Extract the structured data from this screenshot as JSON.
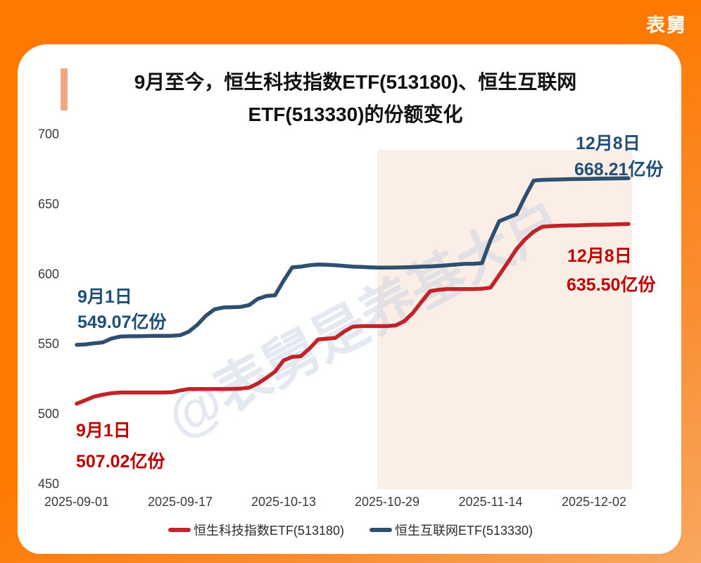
{
  "brand": {
    "logo_text": "表舅"
  },
  "title": {
    "line1": "9月至今，恒生科技指数ETF(513180)、恒生互联网",
    "line2": "ETF(513330)的份额变化"
  },
  "watermark": "@表舅是养基大户",
  "colors": {
    "background_orange": "#ff7900",
    "highlight_band": "#fbeee7",
    "red_series": "#c0242a",
    "blue_series": "#2e4f6e",
    "red_annotation": "#c00000",
    "blue_annotation": "#1f4e79",
    "accent_bar": "#f2a67f"
  },
  "annotations": {
    "blue_start": {
      "date": "9月1日",
      "value": "549.07亿份"
    },
    "red_start": {
      "date": "9月1日",
      "value": "507.02亿份"
    },
    "blue_end": {
      "date": "12月8日",
      "value": "668.21亿份"
    },
    "red_end": {
      "date": "12月8日",
      "value": "635.50亿份"
    }
  },
  "legend": [
    {
      "label": "恒生科技指数ETF(513180)",
      "color": "#c0242a"
    },
    {
      "label": "恒生互联网ETF(513330)",
      "color": "#2e4f6e"
    }
  ],
  "chart_data": {
    "type": "line",
    "title": "9月至今，恒生科技指数ETF(513180)、恒生互联网ETF(513330)的份额变化",
    "xlabel": "",
    "ylabel": "",
    "ylim": [
      450,
      700
    ],
    "y_ticks": [
      450,
      500,
      550,
      600,
      650,
      700
    ],
    "x_tick_labels": [
      "2025-09-01",
      "2025-09-17",
      "2025-10-13",
      "2025-10-29",
      "2025-11-14",
      "2025-12-02"
    ],
    "grid": false,
    "legend_position": "bottom",
    "highlight_band": {
      "from": "2025-10-28",
      "to": "2025-12-08",
      "color": "#fbeee7"
    },
    "dates": [
      "2025-09-01",
      "2025-09-02",
      "2025-09-03",
      "2025-09-04",
      "2025-09-05",
      "2025-09-08",
      "2025-09-09",
      "2025-09-10",
      "2025-09-11",
      "2025-09-12",
      "2025-09-15",
      "2025-09-16",
      "2025-09-17",
      "2025-09-18",
      "2025-09-19",
      "2025-09-22",
      "2025-09-23",
      "2025-09-24",
      "2025-09-25",
      "2025-09-26",
      "2025-09-29",
      "2025-09-30",
      "2025-10-09",
      "2025-10-10",
      "2025-10-13",
      "2025-10-14",
      "2025-10-15",
      "2025-10-16",
      "2025-10-17",
      "2025-10-20",
      "2025-10-21",
      "2025-10-22",
      "2025-10-23",
      "2025-10-24",
      "2025-10-27",
      "2025-10-28",
      "2025-10-29",
      "2025-10-30",
      "2025-10-31",
      "2025-11-03",
      "2025-11-04",
      "2025-11-05",
      "2025-11-06",
      "2025-11-07",
      "2025-11-10",
      "2025-11-11",
      "2025-11-12",
      "2025-11-13",
      "2025-11-14",
      "2025-11-17",
      "2025-11-18",
      "2025-11-19",
      "2025-11-20",
      "2025-11-21",
      "2025-11-24",
      "2025-11-25",
      "2025-11-26",
      "2025-11-27",
      "2025-11-28",
      "2025-12-01",
      "2025-12-02",
      "2025-12-03",
      "2025-12-04",
      "2025-12-05",
      "2025-12-08"
    ],
    "series": [
      {
        "name": "恒生科技指数ETF(513180)",
        "color": "#c0242a",
        "start_label": "9月1日 507.02亿份",
        "end_label": "12月8日 635.50亿份",
        "values": [
          507.02,
          509.5,
          512,
          513.5,
          514.5,
          515,
          515,
          515,
          515,
          515,
          515,
          515.2,
          516.5,
          517.5,
          517.5,
          517.5,
          517.5,
          517.5,
          517.6,
          517.8,
          518.5,
          521.5,
          525.5,
          530,
          538,
          540.5,
          541,
          546.5,
          553,
          553.5,
          554,
          558.5,
          562,
          562.5,
          562.5,
          562.5,
          562.5,
          563,
          566,
          572,
          580,
          587.5,
          588.5,
          589,
          589,
          589,
          589,
          589.2,
          590,
          599,
          608,
          617.5,
          624.5,
          630,
          633.5,
          634,
          634.2,
          634.4,
          634.5,
          634.7,
          634.9,
          635,
          635.1,
          635.3,
          635.5
        ]
      },
      {
        "name": "恒生互联网ETF(513330)",
        "color": "#2e4f6e",
        "start_label": "9月1日 549.07亿份",
        "end_label": "12月8日 668.21亿份",
        "values": [
          549.07,
          549.4,
          550.2,
          550.8,
          553.5,
          555,
          555.2,
          555.3,
          555.4,
          555.5,
          555.5,
          555.6,
          556,
          558.5,
          563.5,
          570,
          574.5,
          575.8,
          576,
          576.2,
          577.5,
          582,
          584,
          584.5,
          595,
          604.5,
          605,
          606,
          606.5,
          606.3,
          606,
          605.5,
          605,
          604.8,
          604.5,
          604.3,
          604.3,
          604.4,
          604.5,
          604.7,
          605,
          605.2,
          605.5,
          606,
          606.5,
          607,
          607,
          607.5,
          624,
          637.5,
          640,
          642.5,
          655,
          666.5,
          667,
          667.2,
          667.3,
          667.5,
          667.6,
          667.7,
          667.8,
          667.9,
          668,
          668.1,
          668.21
        ]
      }
    ]
  }
}
